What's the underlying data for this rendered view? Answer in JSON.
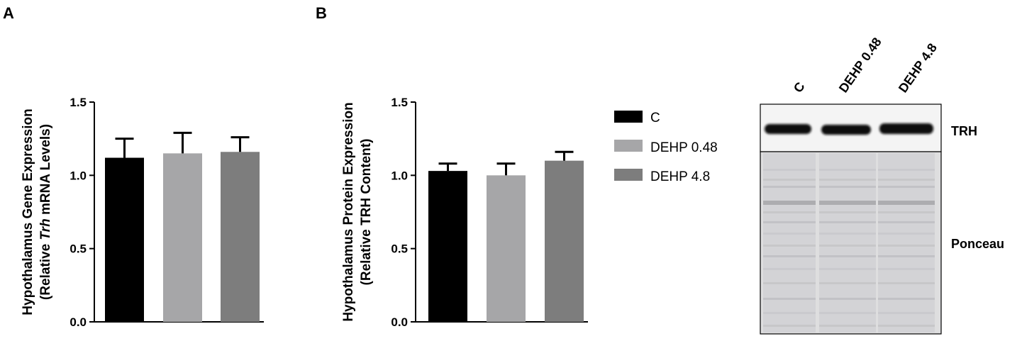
{
  "panels": {
    "a_letter": "A",
    "b_letter": "B"
  },
  "chart_data": [
    {
      "type": "bar",
      "panel": "A",
      "categories": [
        "C",
        "DEHP 0.48",
        "DEHP 4.8"
      ],
      "values": [
        1.12,
        1.15,
        1.16
      ],
      "errors": [
        0.13,
        0.14,
        0.1
      ],
      "colors": [
        "#000000",
        "#a6a6a8",
        "#7d7d7d"
      ],
      "ylabel_line1": "Hypothalamus Gene Expression",
      "ylabel_line2_pre": "(Relative ",
      "ylabel_line2_italic": "Trh",
      "ylabel_line2_post": " mRNA Levels)",
      "ylim": [
        0,
        1.5
      ],
      "yticks": [
        "0.0",
        "0.5",
        "1.0",
        "1.5"
      ]
    },
    {
      "type": "bar",
      "panel": "B",
      "categories": [
        "C",
        "DEHP 0.48",
        "DEHP 4.8"
      ],
      "values": [
        1.03,
        1.0,
        1.1
      ],
      "errors": [
        0.05,
        0.08,
        0.06
      ],
      "colors": [
        "#000000",
        "#a6a6a8",
        "#7d7d7d"
      ],
      "ylabel_line1": "Hypothalamus Protein Expression",
      "ylabel_line2": "(Relative TRH Content)",
      "ylim": [
        0,
        1.5
      ],
      "yticks": [
        "0.0",
        "0.5",
        "1.0",
        "1.5"
      ]
    }
  ],
  "legend": [
    {
      "label": "C",
      "color": "#000000"
    },
    {
      "label": "DEHP 0.48",
      "color": "#a6a6a8"
    },
    {
      "label": "DEHP 4.8",
      "color": "#7d7d7d"
    }
  ],
  "blot": {
    "lane_labels": [
      "C",
      "DEHP 0.48",
      "DEHP 4.8"
    ],
    "band_label": "TRH",
    "loading_label": "Ponceau"
  }
}
